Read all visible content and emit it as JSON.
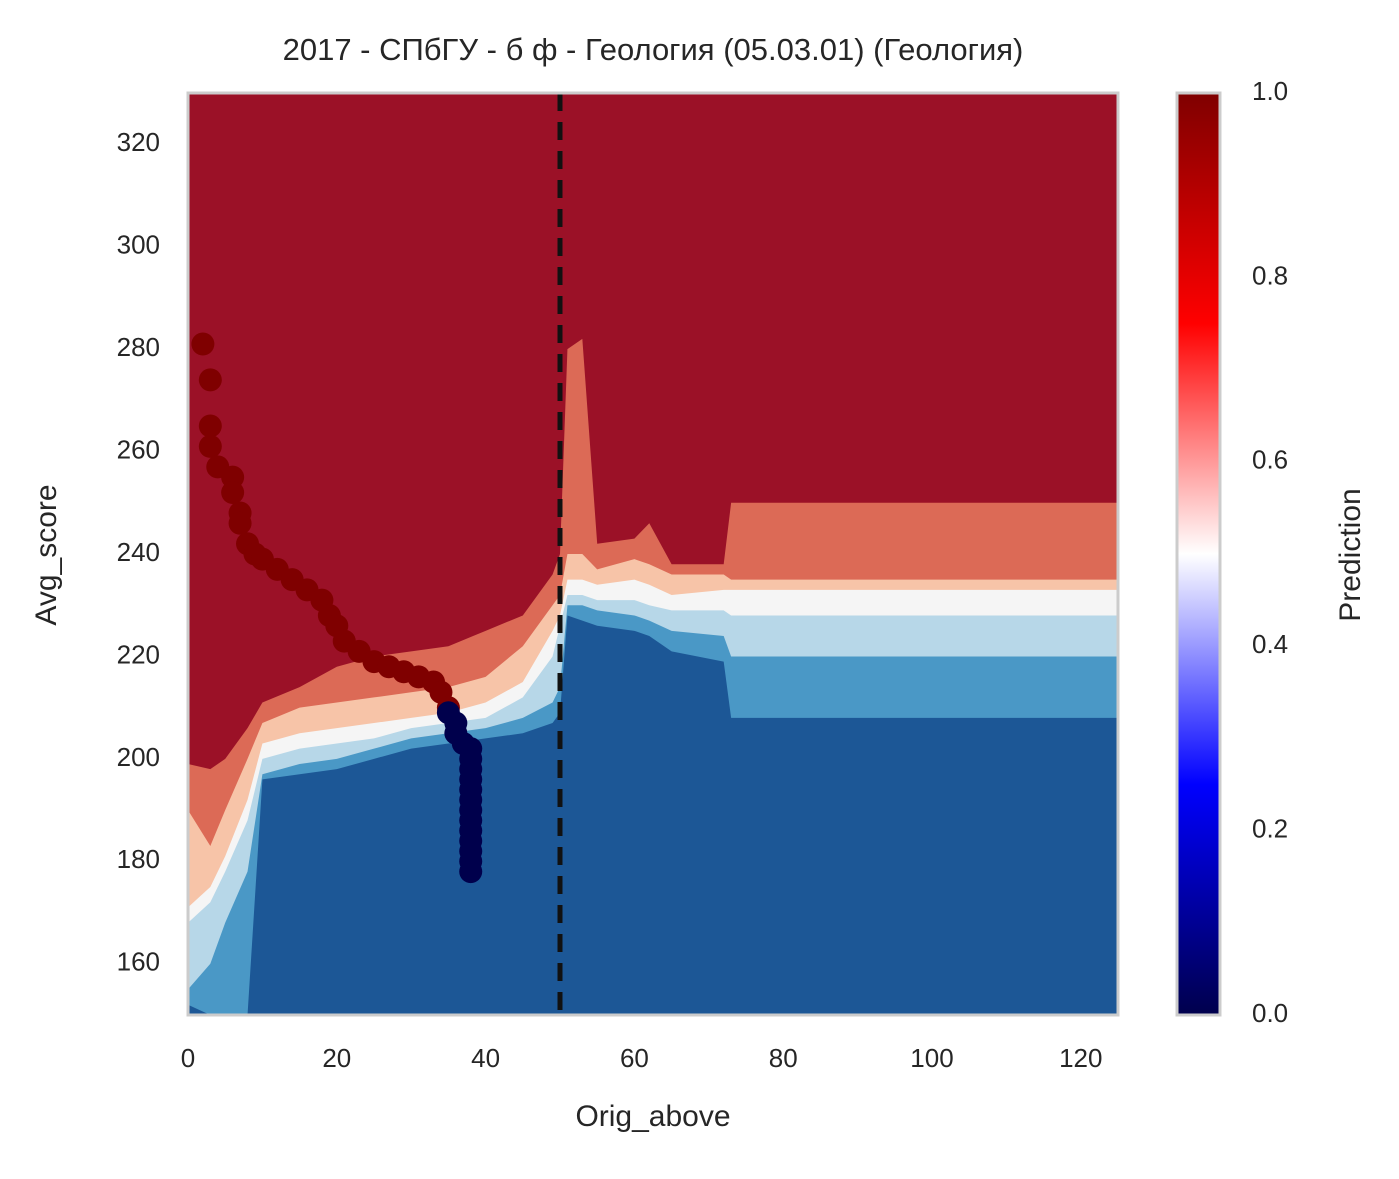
{
  "chart_data": {
    "type": "contour",
    "title": "2017 - СПбГУ - б ф - Геология (05.03.01) (Геология)",
    "x_label": "Orig_above",
    "y_label": "Avg_score",
    "xlim": [
      0,
      125
    ],
    "ylim": [
      150,
      330
    ],
    "xticks": [
      0,
      20,
      40,
      60,
      80,
      100,
      120
    ],
    "yticks": [
      160,
      180,
      200,
      220,
      240,
      260,
      280,
      300,
      320
    ],
    "contour": {
      "base_color": "#1c5796",
      "x": [
        0,
        3,
        5,
        8,
        10,
        15,
        20,
        25,
        30,
        35,
        40,
        45,
        49,
        50,
        51,
        53,
        55,
        60,
        62,
        65,
        72,
        73,
        125
      ],
      "bands": [
        {
          "color": "#4a98c6",
          "lower": [
            152,
            150,
            150,
            150,
            196,
            197,
            198,
            200,
            202,
            203,
            204,
            205,
            207,
            209,
            228,
            227,
            226,
            225,
            224,
            221,
            219,
            208,
            208
          ]
        },
        {
          "color": "#b7d7e8",
          "lower": [
            155,
            160,
            168,
            178,
            197,
            199,
            200,
            202,
            204,
            205,
            206,
            208,
            211,
            214,
            230,
            230,
            229,
            228,
            227,
            225,
            224,
            220,
            220
          ]
        },
        {
          "color": "#f5f5f5",
          "lower": [
            168,
            172,
            178,
            188,
            200,
            202,
            203,
            204,
            206,
            207,
            208,
            212,
            220,
            226,
            232,
            232,
            231,
            231,
            230,
            229,
            229,
            228,
            228
          ]
        },
        {
          "color": "#f7c4a8",
          "lower": [
            171,
            175,
            181,
            192,
            203,
            205,
            206,
            207,
            208,
            209,
            211,
            215,
            225,
            228,
            235,
            235,
            234,
            235,
            234,
            232,
            233,
            233,
            233
          ]
        },
        {
          "color": "#dc6a56",
          "lower": [
            190,
            183,
            190,
            200,
            207,
            210,
            211,
            212,
            213,
            214,
            216,
            222,
            230,
            232,
            240,
            240,
            237,
            239,
            238,
            236,
            236,
            235,
            235
          ]
        },
        {
          "color": "#9b1127",
          "lower": [
            199,
            198,
            200,
            206,
            211,
            214,
            218,
            220,
            221,
            222,
            225,
            228,
            236,
            240,
            280,
            282,
            242,
            243,
            246,
            238,
            238,
            250,
            250
          ]
        }
      ]
    },
    "vline": 50,
    "points": [
      {
        "color": "#7f0000",
        "x": [
          2,
          3,
          3,
          3,
          4,
          6,
          6,
          7,
          7,
          8,
          9,
          10,
          12,
          14,
          16,
          18,
          19,
          20,
          21,
          23,
          25,
          27,
          29,
          31,
          33,
          34,
          35
        ],
        "y": [
          281,
          274,
          265,
          261,
          257,
          255,
          252,
          248,
          246,
          242,
          240,
          239,
          237,
          235,
          233,
          231,
          228,
          226,
          223,
          221,
          219,
          218,
          217,
          216,
          215,
          213,
          210
        ]
      },
      {
        "color": "#00004c",
        "x": [
          35,
          36,
          36,
          37,
          38,
          38,
          38,
          38,
          38,
          38,
          38,
          38,
          38,
          38,
          38,
          38,
          38
        ],
        "y": [
          209,
          207,
          205,
          203,
          202,
          200,
          198,
          196,
          194,
          192,
          190,
          188,
          186,
          184,
          182,
          180,
          178
        ]
      }
    ],
    "colorbar": {
      "label": "Prediction",
      "lim": [
        0,
        1
      ],
      "ticks": [
        {
          "value": 0,
          "label": "0.0"
        },
        0.2,
        0.4,
        0.6,
        0.8,
        {
          "value": 1,
          "label": "1.0"
        }
      ],
      "colors": [
        "#00004c",
        "#0000ff",
        "#ffffff",
        "#ff0000",
        "#7f0000"
      ]
    }
  }
}
